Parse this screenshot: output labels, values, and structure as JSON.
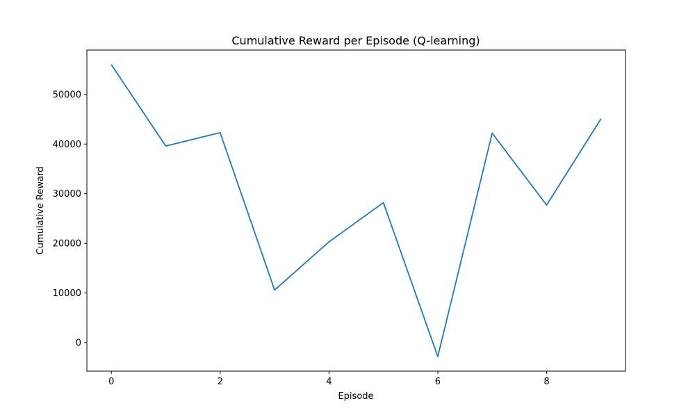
{
  "chart_data": {
    "type": "line",
    "title": "Cumulative Reward per Episode (Q-learning)",
    "xlabel": "Episode",
    "ylabel": "Cumulative Reward",
    "x": [
      0,
      1,
      2,
      3,
      4,
      5,
      6,
      7,
      8,
      9
    ],
    "series": [
      {
        "values": [
          56000,
          39600,
          42300,
          10600,
          20300,
          28200,
          -2800,
          42200,
          27700,
          45100
        ],
        "color": "#1f77b4"
      }
    ],
    "xlim": [
      -0.45,
      9.45
    ],
    "ylim": [
      -5740,
      58940
    ],
    "xticks": [
      0,
      2,
      4,
      6,
      8
    ],
    "yticks": [
      0,
      10000,
      20000,
      30000,
      40000,
      50000
    ],
    "grid": false,
    "legend": "none"
  }
}
